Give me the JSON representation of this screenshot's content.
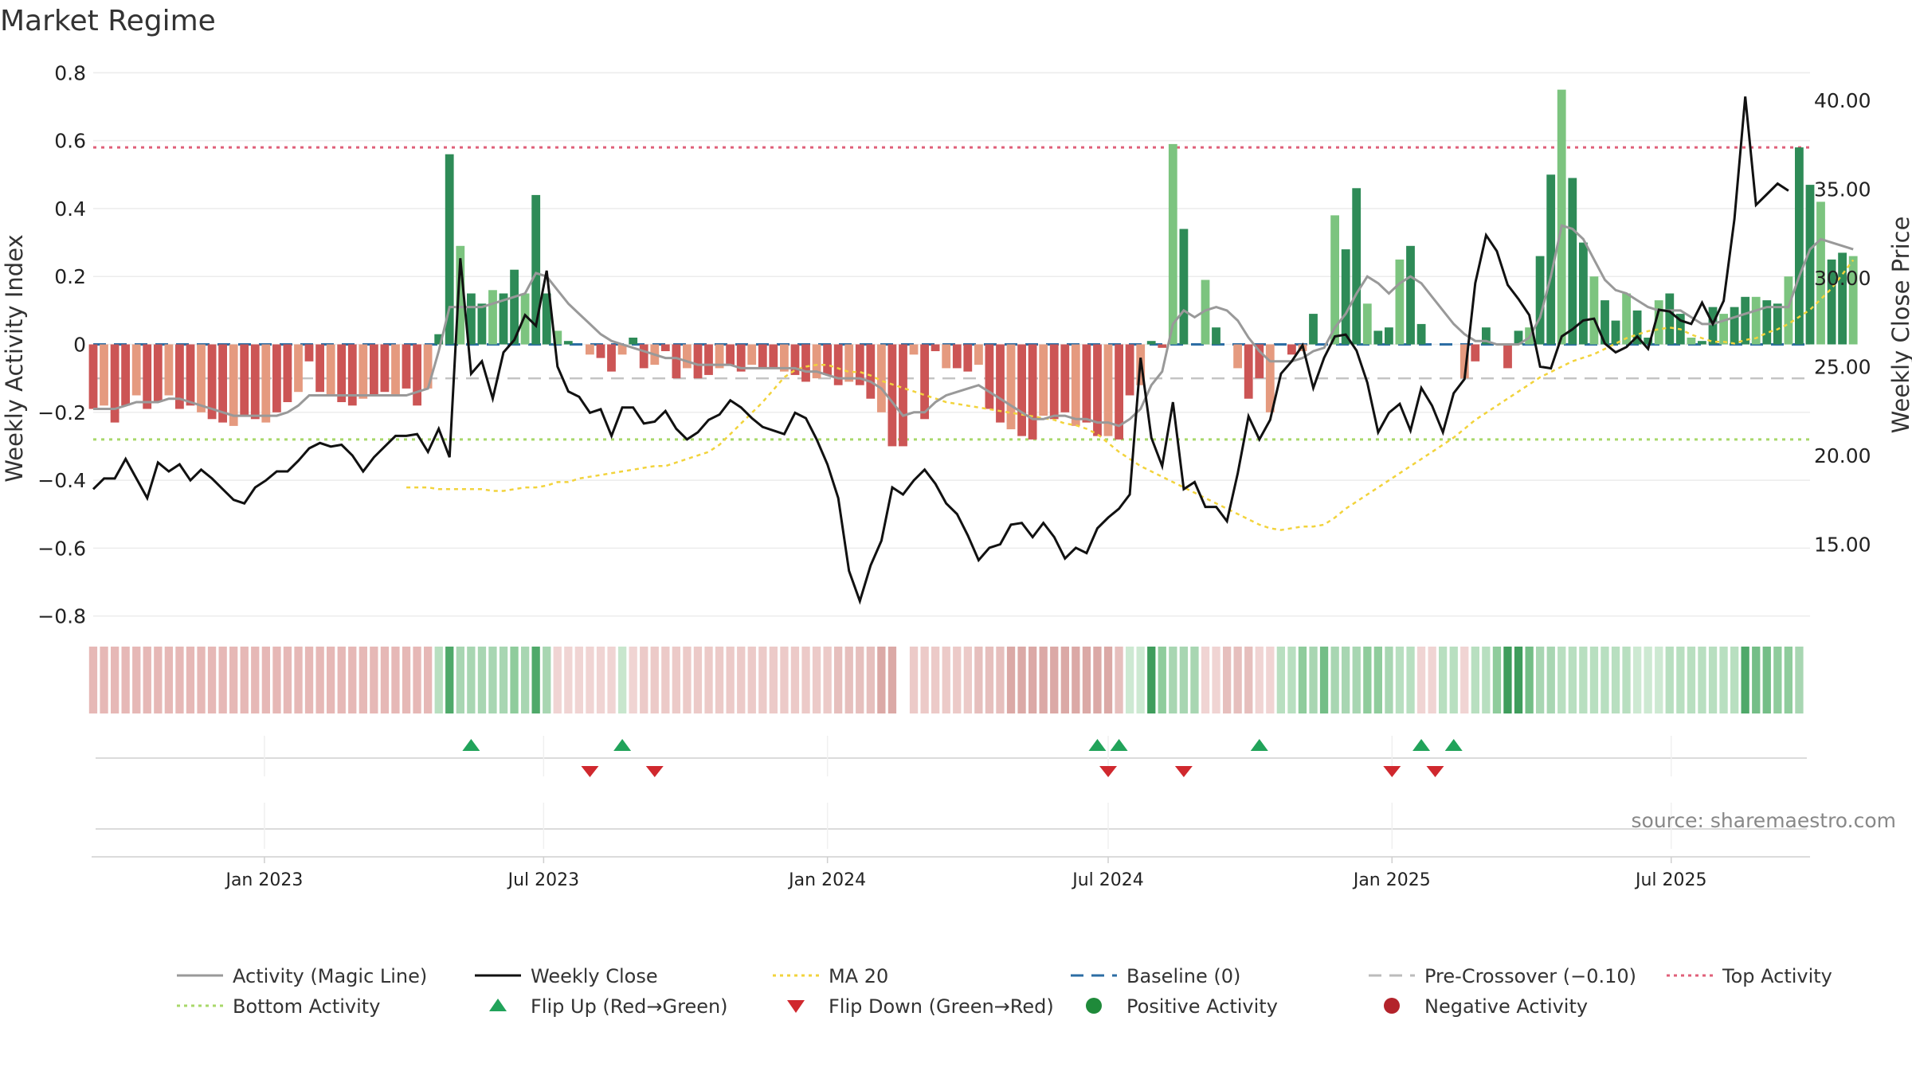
{
  "chart_data": {
    "type": "bar+line",
    "title": "Market Regime",
    "source": "source: sharemaestro.com",
    "y_left": {
      "label": "Weekly Activity Index",
      "range": [
        -0.85,
        0.85
      ],
      "ticks": [
        0.8,
        0.6,
        0.4,
        0.2,
        0,
        -0.2,
        -0.4,
        -0.6,
        -0.8
      ],
      "tick_labels": [
        "0.8",
        "0.6",
        "0.4",
        "0.2",
        "0",
        "−0.2",
        "−0.4",
        "−0.6",
        "−0.8"
      ]
    },
    "y_right": {
      "label": "Weekly Close Price",
      "range": [
        10.0,
        42.5
      ],
      "ticks": [
        40,
        35,
        30,
        25,
        20,
        15
      ],
      "tick_labels": [
        "40.00",
        "35.00",
        "30.00",
        "25.00",
        "20.00",
        "15.00"
      ]
    },
    "x_axis": {
      "start": "2022-09-12",
      "end": "2025-09-29",
      "ticks": [
        {
          "date": "2023-01-01",
          "label": "Jan 2023"
        },
        {
          "date": "2023-07-01",
          "label": "Jul 2023"
        },
        {
          "date": "2024-01-01",
          "label": "Jan 2024"
        },
        {
          "date": "2024-07-01",
          "label": "Jul 2024"
        },
        {
          "date": "2025-01-01",
          "label": "Jan 2025"
        },
        {
          "date": "2025-07-01",
          "label": "Jul 2025"
        }
      ]
    },
    "reference_lines": {
      "top_activity": 0.58,
      "bottom_activity": -0.28,
      "pre_crossover": -0.1,
      "baseline": 0
    },
    "weekly_activity": [
      -0.19,
      -0.18,
      -0.23,
      -0.18,
      -0.15,
      -0.19,
      -0.17,
      -0.15,
      -0.19,
      -0.18,
      -0.2,
      -0.22,
      -0.23,
      -0.24,
      -0.21,
      -0.22,
      -0.23,
      -0.2,
      -0.17,
      -0.14,
      -0.05,
      -0.14,
      -0.15,
      -0.17,
      -0.18,
      -0.16,
      -0.15,
      -0.14,
      -0.15,
      -0.13,
      -0.18,
      -0.13,
      0.03,
      0.56,
      0.29,
      0.15,
      0.12,
      0.16,
      0.15,
      0.22,
      0.15,
      0.44,
      0.15,
      0.04,
      0.01,
      0.0,
      -0.03,
      -0.04,
      -0.08,
      -0.03,
      0.02,
      -0.07,
      -0.06,
      -0.02,
      -0.1,
      -0.07,
      -0.1,
      -0.09,
      -0.07,
      -0.06,
      -0.08,
      -0.06,
      -0.07,
      -0.07,
      -0.08,
      -0.09,
      -0.11,
      -0.1,
      -0.09,
      -0.12,
      -0.11,
      -0.12,
      -0.16,
      -0.2,
      -0.3,
      -0.3,
      -0.03,
      -0.22,
      -0.02,
      -0.07,
      -0.07,
      -0.08,
      -0.06,
      -0.19,
      -0.23,
      -0.25,
      -0.27,
      -0.28,
      -0.21,
      -0.22,
      -0.2,
      -0.24,
      -0.23,
      -0.27,
      -0.27,
      -0.28,
      -0.15,
      -0.12,
      0.01,
      -0.01,
      0.59,
      0.34,
      0.0,
      0.19,
      0.05,
      0.0,
      -0.07,
      -0.16,
      -0.1,
      -0.2,
      0.0,
      -0.03,
      -0.02,
      0.09,
      0.0,
      0.38,
      0.28,
      0.46,
      0.12,
      0.04,
      0.05,
      0.25,
      0.29,
      0.06,
      0.0,
      0.0,
      0.0,
      -0.1,
      -0.05,
      0.05,
      0.0,
      -0.07,
      0.04,
      0.05,
      0.26,
      0.5,
      0.75,
      0.49,
      0.3,
      0.2,
      0.13,
      0.07,
      0.15,
      0.1,
      0.02,
      0.13,
      0.15,
      0.09,
      0.02,
      0.01,
      0.11,
      0.09,
      0.11,
      0.14,
      0.14,
      0.13,
      0.12,
      0.2,
      0.58,
      0.47,
      0.42,
      0.25,
      0.27,
      0.26
    ],
    "activity_magic_line": [
      -0.19,
      -0.19,
      -0.19,
      -0.18,
      -0.17,
      -0.17,
      -0.17,
      -0.16,
      -0.16,
      -0.17,
      -0.18,
      -0.19,
      -0.2,
      -0.21,
      -0.21,
      -0.21,
      -0.21,
      -0.21,
      -0.2,
      -0.18,
      -0.15,
      -0.15,
      -0.15,
      -0.15,
      -0.15,
      -0.15,
      -0.15,
      -0.15,
      -0.15,
      -0.15,
      -0.14,
      -0.13,
      -0.02,
      0.11,
      0.11,
      0.11,
      0.11,
      0.12,
      0.13,
      0.14,
      0.15,
      0.21,
      0.2,
      0.16,
      0.12,
      0.09,
      0.06,
      0.03,
      0.01,
      0.0,
      -0.01,
      -0.02,
      -0.03,
      -0.04,
      -0.04,
      -0.05,
      -0.06,
      -0.06,
      -0.06,
      -0.06,
      -0.07,
      -0.07,
      -0.07,
      -0.07,
      -0.07,
      -0.07,
      -0.08,
      -0.08,
      -0.09,
      -0.1,
      -0.1,
      -0.1,
      -0.11,
      -0.13,
      -0.17,
      -0.21,
      -0.2,
      -0.2,
      -0.17,
      -0.15,
      -0.14,
      -0.13,
      -0.12,
      -0.14,
      -0.16,
      -0.18,
      -0.2,
      -0.22,
      -0.22,
      -0.21,
      -0.21,
      -0.22,
      -0.22,
      -0.23,
      -0.23,
      -0.24,
      -0.22,
      -0.19,
      -0.12,
      -0.08,
      0.06,
      0.1,
      0.08,
      0.1,
      0.11,
      0.1,
      0.07,
      0.02,
      -0.02,
      -0.05,
      -0.05,
      -0.05,
      -0.04,
      -0.02,
      -0.01,
      0.05,
      0.09,
      0.15,
      0.2,
      0.18,
      0.15,
      0.18,
      0.2,
      0.18,
      0.14,
      0.1,
      0.06,
      0.03,
      0.01,
      0.01,
      0.0,
      0.0,
      0.0,
      0.02,
      0.08,
      0.2,
      0.35,
      0.34,
      0.31,
      0.25,
      0.19,
      0.16,
      0.15,
      0.13,
      0.11,
      0.1,
      0.1,
      0.1,
      0.08,
      0.06,
      0.06,
      0.07,
      0.08,
      0.09,
      0.1,
      0.11,
      0.11,
      0.11,
      0.2,
      0.28,
      0.31,
      0.3,
      0.29,
      0.28
    ],
    "weekly_close": [
      18.1,
      18.7,
      18.7,
      19.8,
      18.7,
      17.6,
      19.6,
      19.1,
      19.5,
      18.6,
      19.2,
      18.7,
      18.1,
      17.5,
      17.3,
      18.2,
      18.6,
      19.1,
      19.1,
      19.7,
      20.4,
      20.7,
      20.5,
      20.6,
      20.0,
      19.1,
      19.9,
      20.5,
      21.1,
      21.1,
      21.2,
      20.2,
      21.5,
      19.9,
      31.1,
      24.6,
      25.3,
      23.2,
      25.8,
      26.5,
      27.9,
      27.3,
      30.4,
      25.0,
      23.6,
      23.3,
      22.4,
      22.6,
      21.1,
      22.7,
      22.7,
      21.8,
      21.9,
      22.5,
      21.5,
      20.9,
      21.3,
      22.0,
      22.3,
      23.1,
      22.7,
      22.1,
      21.6,
      21.4,
      21.2,
      22.4,
      22.1,
      20.9,
      19.5,
      17.6,
      13.5,
      11.8,
      13.8,
      15.2,
      18.2,
      17.8,
      18.6,
      19.2,
      18.4,
      17.3,
      16.7,
      15.5,
      14.1,
      14.8,
      15.0,
      16.1,
      16.2,
      15.4,
      16.2,
      15.4,
      14.2,
      14.8,
      14.5,
      15.9,
      16.5,
      17.0,
      17.8,
      25.5,
      21.0,
      19.4,
      23.0,
      18.1,
      18.5,
      17.1,
      17.1,
      16.3,
      19.0,
      22.2,
      20.9,
      22.0,
      24.6,
      25.3,
      26.2,
      23.8,
      25.5,
      26.7,
      26.8,
      25.9,
      24.1,
      21.3,
      22.4,
      22.9,
      21.4,
      23.8,
      22.8,
      21.3,
      23.5,
      24.3,
      29.7,
      32.4,
      31.5,
      29.6,
      28.8,
      27.9,
      25.0,
      24.9,
      26.7,
      27.1,
      27.6,
      27.7,
      26.3,
      25.8,
      26.1,
      26.7,
      26.0,
      28.2,
      28.1,
      27.6,
      27.4,
      28.6,
      27.4,
      28.7,
      33.3,
      40.2,
      34.1,
      34.7,
      35.3,
      34.9
    ],
    "ma_20": [
      18.2,
      18.2,
      18.2,
      18.1,
      18.1,
      18.1,
      18.1,
      18.1,
      18.0,
      18.0,
      18.1,
      18.2,
      18.2,
      18.3,
      18.5,
      18.5,
      18.7,
      18.8,
      18.9,
      19.0,
      19.1,
      19.2,
      19.3,
      19.4,
      19.4,
      19.6,
      19.8,
      20.0,
      20.2,
      20.6,
      21.2,
      21.8,
      22.4,
      23.0,
      23.7,
      24.4,
      24.8,
      25.0,
      25.1,
      25.1,
      24.9,
      24.7,
      24.7,
      24.5,
      24.2,
      24.0,
      23.8,
      23.6,
      23.4,
      23.2,
      23.0,
      22.9,
      22.8,
      22.7,
      22.6,
      22.5,
      22.4,
      22.3,
      22.2,
      22.1,
      22.0,
      21.8,
      21.7,
      21.5,
      21.2,
      20.7,
      20.2,
      19.8,
      19.4,
      19.1,
      18.8,
      18.5,
      18.2,
      17.9,
      17.6,
      17.3,
      17.0,
      16.7,
      16.4,
      16.1,
      15.9,
      15.8,
      15.9,
      16.0,
      16.0,
      16.1,
      16.5,
      17.0,
      17.4,
      17.8,
      18.2,
      18.6,
      19.0,
      19.4,
      19.8,
      20.2,
      20.6,
      21.0,
      21.5,
      22.0,
      22.4,
      22.8,
      23.2,
      23.6,
      24.0,
      24.4,
      24.7,
      25.0,
      25.3,
      25.5,
      25.7,
      26.0,
      26.3,
      26.6,
      26.8,
      27.0,
      27.1,
      27.2,
      27.1,
      26.8,
      26.6,
      26.4,
      26.4,
      26.3,
      26.5,
      26.6,
      26.9,
      27.1,
      27.4,
      27.8,
      28.2,
      28.8,
      29.4,
      30.2,
      31.0
    ],
    "regime_strip": {
      "start": "2022-09-12",
      "colors": [
        "#e6b8b6",
        "#e6b8b6",
        "#e6b8b6",
        "#e6b8b6",
        "#e6b8b6",
        "#e6b8b6",
        "#e6b8b6",
        "#e6b8b6",
        "#e6b8b6",
        "#e6b8b6",
        "#e6b8b6",
        "#e6b8b6",
        "#e6b8b6",
        "#e6b8b6",
        "#e6b8b6",
        "#e6b8b6",
        "#e6b8b6",
        "#e6b8b6",
        "#e6b8b6",
        "#e6b8b6",
        "#e6b8b6",
        "#e6b8b6",
        "#e6b8b6",
        "#e6b8b6",
        "#e6b8b6",
        "#e6b8b6",
        "#e6b8b6",
        "#e6b8b6",
        "#e6b8b6",
        "#e6b8b6",
        "#e6b8b6",
        "#e6b8b6",
        "#b8dfc0",
        "#4fa96a",
        "#a8d6b2",
        "#a8d6b2",
        "#a8d6b2",
        "#a8d6b2",
        "#a8d6b2",
        "#8fcc9c",
        "#a8d6b2",
        "#4fa96a",
        "#a8d6b2",
        "#f0d4d3",
        "#f0d4d3",
        "#f0d4d3",
        "#f0d4d3",
        "#f0d4d3",
        "#f0d4d3",
        "#c8e6cd",
        "#f0d4d3",
        "#eccac8",
        "#eccac8",
        "#eccac8",
        "#eccac8",
        "#eccac8",
        "#eccac8",
        "#eccac8",
        "#eccac8",
        "#eccac8",
        "#eccac8",
        "#eccac8",
        "#eccac8",
        "#eccac8",
        "#eccac8",
        "#eccac8",
        "#eccac8",
        "#eccac8",
        "#eccac8",
        "#e6bfbd",
        "#e6bfbd",
        "#e6bfbd",
        "#e6bfbd",
        "#dba9a6",
        "#dba9a6",
        "#ffffff",
        "#eccac8",
        "#eccac8",
        "#eccac8",
        "#eccac8",
        "#eccac8",
        "#eccac8",
        "#e6bfbd",
        "#e6bfbd",
        "#e6bfbd",
        "#dba9a6",
        "#dba9a6",
        "#dba9a6",
        "#dba9a6",
        "#dba9a6",
        "#dba9a6",
        "#dba9a6",
        "#dba9a6",
        "#dba9a6",
        "#dba9a6",
        "#e6bfbd",
        "#cde9d2",
        "#cde9d2",
        "#3f9d5c",
        "#8fcc9c",
        "#a8d6b2",
        "#a8d6b2",
        "#a8d6b2",
        "#f0d4d3",
        "#f0d4d3",
        "#e6bfbd",
        "#e6bfbd",
        "#e6bfbd",
        "#f0d4d3",
        "#f0d4d3",
        "#b8dfc0",
        "#b8dfc0",
        "#8fcc9c",
        "#a8d6b2",
        "#74be87",
        "#a8d6b2",
        "#a8d6b2",
        "#a8d6b2",
        "#8fcc9c",
        "#8fcc9c",
        "#a8d6b2",
        "#b8dfc0",
        "#b8dfc0",
        "#f0d4d3",
        "#f0d4d3",
        "#b8dfc0",
        "#b8dfc0",
        "#f0d4d3",
        "#b8dfc0",
        "#b8dfc0",
        "#8fcc9c",
        "#3f9d5c",
        "#3f9d5c",
        "#74be87",
        "#a8d6b2",
        "#a8d6b2",
        "#b8dfc0",
        "#b8dfc0",
        "#b8dfc0",
        "#b8dfc0",
        "#b8dfc0",
        "#b8dfc0",
        "#b8dfc0",
        "#cde9d2",
        "#cde9d2",
        "#cde9d2",
        "#b8dfc0",
        "#b8dfc0",
        "#b8dfc0",
        "#b8dfc0",
        "#b8dfc0",
        "#b8dfc0",
        "#b8dfc0",
        "#4fa96a",
        "#74be87",
        "#74be87",
        "#8fcc9c",
        "#8fcc9c",
        "#a8d6b2"
      ]
    },
    "flip_up_dates": [
      "2023-05-15",
      "2023-08-21",
      "2024-06-24",
      "2024-07-08",
      "2024-10-07",
      "2025-01-20",
      "2025-02-10"
    ],
    "flip_down_dates": [
      "2023-07-31",
      "2023-09-11",
      "2024-07-01",
      "2024-08-19",
      "2025-01-01",
      "2025-01-29"
    ],
    "legend": [
      {
        "key": "magic",
        "label": "Activity (Magic Line)",
        "color": "#999999",
        "style": "solid"
      },
      {
        "key": "close",
        "label": "Weekly Close",
        "color": "#111111",
        "style": "solid"
      },
      {
        "key": "ma",
        "label": "MA 20",
        "color": "#f2d33c",
        "style": "dotted"
      },
      {
        "key": "baseline",
        "label": "Baseline (0)",
        "color": "#2c6da4",
        "style": "dashed"
      },
      {
        "key": "precross",
        "label": "Pre-Crossover (−0.10)",
        "color": "#bbbbbb",
        "style": "dashed"
      },
      {
        "key": "top",
        "label": "Top Activity",
        "color": "#e0607a",
        "style": "dotted"
      },
      {
        "key": "bottom",
        "label": "Bottom Activity",
        "color": "#a8d86a",
        "style": "dotted"
      },
      {
        "key": "flipup",
        "label": "Flip Up (Red→Green)",
        "color": "#21a35a",
        "style": "triangle-up"
      },
      {
        "key": "flipdown",
        "label": "Flip Down (Green→Red)",
        "color": "#d0282e",
        "style": "triangle-down"
      },
      {
        "key": "pos",
        "label": "Positive Activity",
        "color": "#1f8a3a",
        "style": "dot"
      },
      {
        "key": "neg",
        "label": "Negative Activity",
        "color": "#b3232b",
        "style": "dot"
      }
    ],
    "colors": {
      "pos_strong": "#2e8b57",
      "pos_light": "#7cc47f",
      "neg_strong": "#cc5555",
      "neg_light": "#e59a7f"
    }
  }
}
